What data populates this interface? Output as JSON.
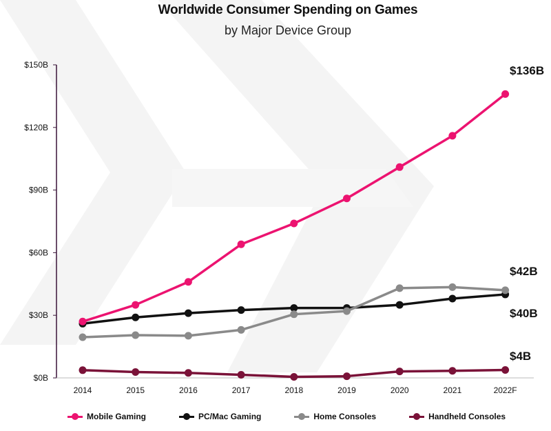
{
  "title": "Worldwide Consumer Spending on Games",
  "subtitle": "by Major Device Group",
  "chart_data": {
    "type": "line",
    "title": "Worldwide Consumer Spending on Games",
    "subtitle": "by Major Device Group",
    "xlabel": "",
    "ylabel": "",
    "categories": [
      "2014",
      "2015",
      "2016",
      "2017",
      "2018",
      "2019",
      "2020",
      "2021",
      "2022F"
    ],
    "yticks": [
      "$0B",
      "$30B",
      "$60B",
      "$90B",
      "$120B",
      "$150B"
    ],
    "ylim": [
      0,
      150
    ],
    "grid": false,
    "legend_position": "bottom",
    "series": [
      {
        "name": "Mobile Gaming",
        "color": "#ec1370",
        "values": [
          27,
          35,
          46,
          64,
          74,
          86,
          101,
          116,
          136
        ]
      },
      {
        "name": "PC/Mac Gaming",
        "color": "#111111",
        "values": [
          26,
          29,
          31,
          32.5,
          33.5,
          33.5,
          35,
          38,
          40
        ]
      },
      {
        "name": "Home Consoles",
        "color": "#8a8a8a",
        "values": [
          19.5,
          20.5,
          20.2,
          23,
          30.5,
          32,
          43,
          43.5,
          42
        ]
      },
      {
        "name": "Handheld Consoles",
        "color": "#7a1238",
        "values": [
          3.7,
          2.8,
          2.4,
          1.5,
          0.5,
          0.8,
          3.1,
          3.4,
          3.8
        ]
      }
    ],
    "end_labels": [
      {
        "series": "Mobile Gaming",
        "text": "$136B"
      },
      {
        "series": "Home Consoles",
        "text": "$42B"
      },
      {
        "series": "PC/Mac Gaming",
        "text": "$40B"
      },
      {
        "series": "Handheld Consoles",
        "text": "$4B"
      }
    ]
  },
  "legend": [
    {
      "label": "Mobile Gaming",
      "color": "#ec1370"
    },
    {
      "label": "PC/Mac Gaming",
      "color": "#111111"
    },
    {
      "label": "Home Consoles",
      "color": "#8a8a8a"
    },
    {
      "label": "Handheld Consoles",
      "color": "#7a1238"
    }
  ]
}
